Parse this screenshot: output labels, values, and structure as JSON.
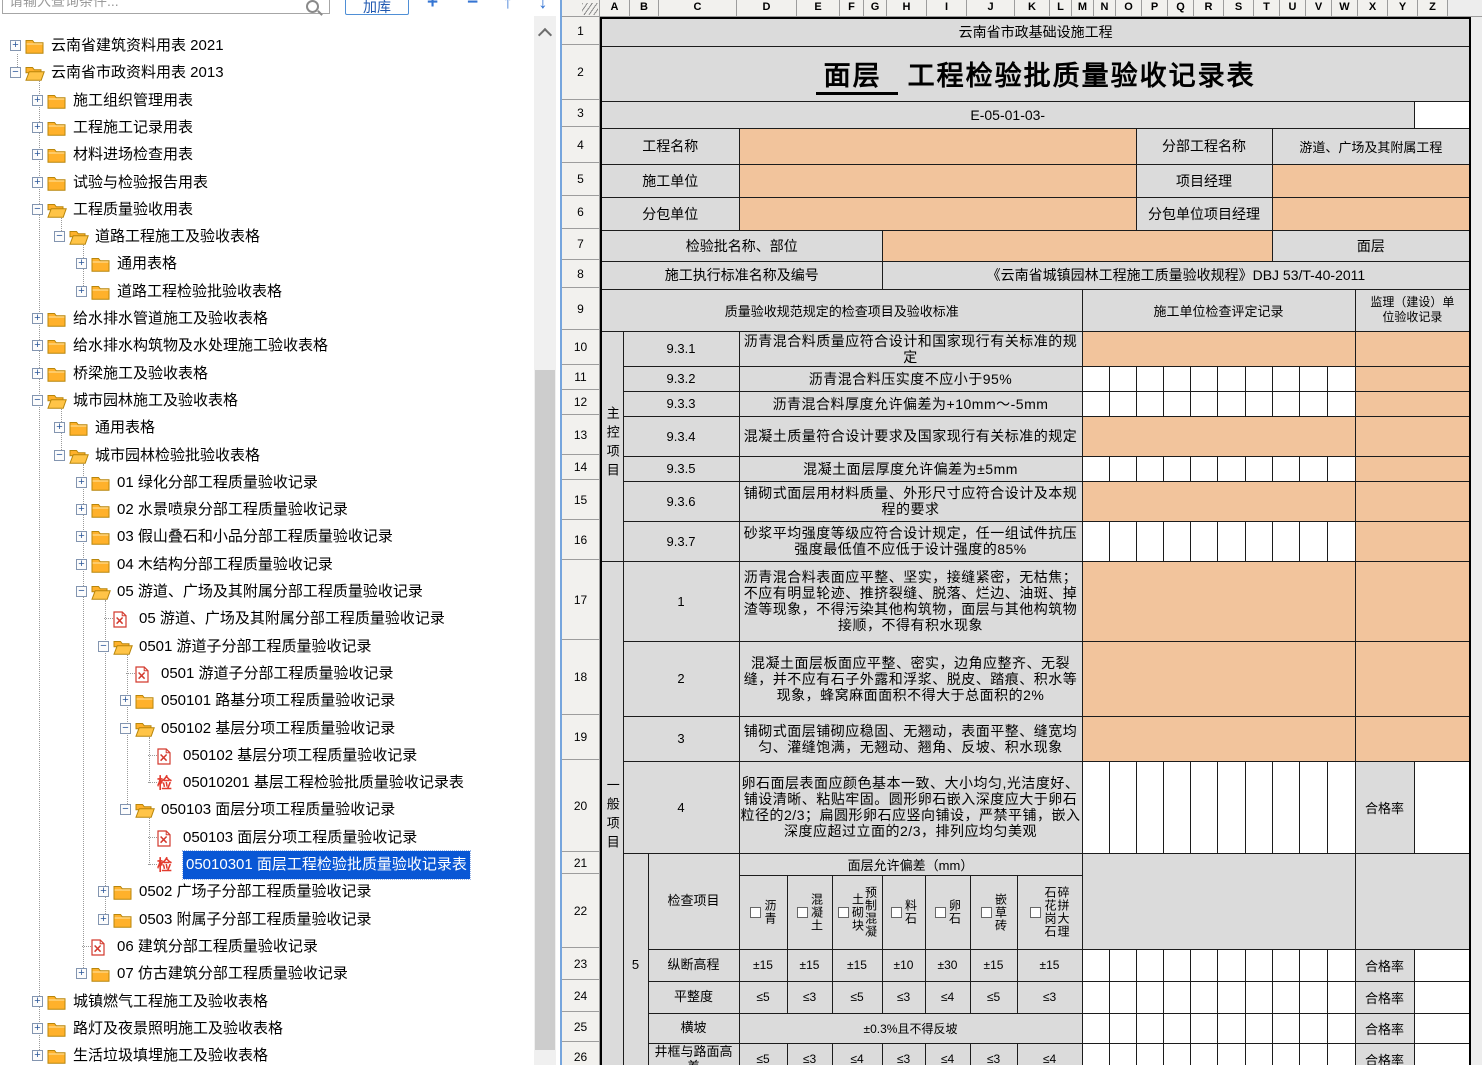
{
  "toolbar": {
    "search_placeholder": "请输入查询条件...",
    "add_button": "加库",
    "icons": {
      "plus": "+",
      "minus": "−",
      "up": "↑",
      "down": "↓"
    }
  },
  "icons": {
    "jian_char": "检"
  },
  "colors": {
    "accent_blue": "#3575d3",
    "selection_blue": "#0957d5",
    "input_orange": "#f2c49c",
    "cell_gray": "#dbdbdb",
    "folder_amber": "#ffb12b",
    "file_red": "#d33a2e"
  },
  "tree": {
    "items": [
      {
        "label": "云南省建筑资料用表 2021",
        "level": 0,
        "icon": "folder",
        "expand": "plus"
      },
      {
        "label": "云南省市政资料用表 2013",
        "level": 0,
        "icon": "folder-open",
        "expand": "minus"
      },
      {
        "label": "施工组织管理用表",
        "level": 1,
        "icon": "folder",
        "expand": "plus"
      },
      {
        "label": "工程施工记录用表",
        "level": 1,
        "icon": "folder",
        "expand": "plus"
      },
      {
        "label": "材料进场检查用表",
        "level": 1,
        "icon": "folder",
        "expand": "plus"
      },
      {
        "label": "试验与检验报告用表",
        "level": 1,
        "icon": "folder",
        "expand": "plus"
      },
      {
        "label": "工程质量验收用表",
        "level": 1,
        "icon": "folder-open",
        "expand": "minus"
      },
      {
        "label": "道路工程施工及验收表格",
        "level": 2,
        "icon": "folder-open",
        "expand": "minus"
      },
      {
        "label": "通用表格",
        "level": 3,
        "icon": "folder",
        "expand": "plus"
      },
      {
        "label": "道路工程检验批验收表格",
        "level": 3,
        "icon": "folder",
        "expand": "plus"
      },
      {
        "label": "给水排水管道施工及验收表格",
        "level": 1,
        "icon": "folder",
        "expand": "plus"
      },
      {
        "label": "给水排水构筑物及水处理施工验收表格",
        "level": 1,
        "icon": "folder",
        "expand": "plus"
      },
      {
        "label": "桥梁施工及验收表格",
        "level": 1,
        "icon": "folder",
        "expand": "plus"
      },
      {
        "label": "城市园林施工及验收表格",
        "level": 1,
        "icon": "folder-open",
        "expand": "minus"
      },
      {
        "label": "通用表格",
        "level": 2,
        "icon": "folder",
        "expand": "plus"
      },
      {
        "label": "城市园林检验批验收表格",
        "level": 2,
        "icon": "folder-open",
        "expand": "minus"
      },
      {
        "label": "01 绿化分部工程质量验收记录",
        "level": 3,
        "icon": "folder",
        "expand": "plus"
      },
      {
        "label": "02 水景喷泉分部工程质量验收记录",
        "level": 3,
        "icon": "folder",
        "expand": "plus"
      },
      {
        "label": "03 假山叠石和小品分部工程质量验收记录",
        "level": 3,
        "icon": "folder",
        "expand": "plus"
      },
      {
        "label": "04 木结构分部工程质量验收记录",
        "level": 3,
        "icon": "folder",
        "expand": "plus"
      },
      {
        "label": "05 游道、广场及其附属分部工程质量验收记录",
        "level": 3,
        "icon": "folder-open",
        "expand": "minus"
      },
      {
        "label": "05 游道、广场及其附属分部工程质量验收记录",
        "level": 4,
        "icon": "file-x"
      },
      {
        "label": "0501 游道子分部工程质量验收记录",
        "level": 4,
        "icon": "folder-open",
        "expand": "minus"
      },
      {
        "label": "0501 游道子分部工程质量验收记录",
        "level": 5,
        "icon": "file-x"
      },
      {
        "label": "050101 路基分项工程质量验收记录",
        "level": 5,
        "icon": "folder",
        "expand": "plus"
      },
      {
        "label": "050102 基层分项工程质量验收记录",
        "level": 5,
        "icon": "folder-open",
        "expand": "minus"
      },
      {
        "label": "050102 基层分项工程质量验收记录",
        "level": 6,
        "icon": "file-x"
      },
      {
        "label": "05010201 基层工程检验批质量验收记录表",
        "level": 6,
        "icon": "file-jian"
      },
      {
        "label": "050103 面层分项工程质量验收记录",
        "level": 5,
        "icon": "folder-open",
        "expand": "minus"
      },
      {
        "label": "050103 面层分项工程质量验收记录",
        "level": 6,
        "icon": "file-x"
      },
      {
        "label": "05010301 面层工程检验批质量验收记录表",
        "level": 6,
        "icon": "file-jian",
        "selected": true
      },
      {
        "label": "0502 广场子分部工程质量验收记录",
        "level": 4,
        "icon": "folder",
        "expand": "plus"
      },
      {
        "label": "0503 附属子分部工程质量验收记录",
        "level": 4,
        "icon": "folder",
        "expand": "plus"
      },
      {
        "label": "06 建筑分部工程质量验收记录",
        "level": 3,
        "icon": "file-x"
      },
      {
        "label": "07 仿古建筑分部工程质量验收记录",
        "level": 3,
        "icon": "folder",
        "expand": "plus"
      },
      {
        "label": "城镇燃气工程施工及验收表格",
        "level": 1,
        "icon": "folder",
        "expand": "plus"
      },
      {
        "label": "路灯及夜景照明施工及验收表格",
        "level": 1,
        "icon": "folder",
        "expand": "plus"
      },
      {
        "label": "生活垃圾填埋施工及验收表格",
        "level": 1,
        "icon": "folder",
        "expand": "plus"
      }
    ]
  },
  "sheet": {
    "columns": [
      "A",
      "B",
      "C",
      "D",
      "E",
      "F",
      "G",
      "H",
      "I",
      "J",
      "K",
      "L",
      "M",
      "N",
      "O",
      "P",
      "Q",
      "R",
      "S",
      "T",
      "U",
      "V",
      "W",
      "X",
      "Y",
      "Z"
    ],
    "rows": [
      "1",
      "2",
      "3",
      "4",
      "5",
      "6",
      "7",
      "8",
      "9",
      "10",
      "11",
      "12",
      "13",
      "14",
      "15",
      "16",
      "17",
      "18",
      "19",
      "20",
      "21",
      "22",
      "23",
      "24",
      "25",
      "26"
    ]
  },
  "form": {
    "top_header": "云南省市政基础设施工程",
    "title_blank": "面层",
    "title_rest": "工程检验批质量验收记录表",
    "code": "E-05-01-03-",
    "info": {
      "project_name_label": "工程名称",
      "division_label": "分部工程名称",
      "division_value": "游道、广场及其附属工程",
      "contractor_label": "施工单位",
      "pm_label": "项目经理",
      "subcontractor_label": "分包单位",
      "sub_pm_label": "分包单位项目经理",
      "batch_label": "检验批名称、部位",
      "batch_value": "面层",
      "standard_label": "施工执行标准名称及编号",
      "standard_value": "《云南省城镇园林工程施工质量验收规程》DBJ 53/T-40-2011"
    },
    "table_headers": {
      "spec": "质量验收规范规定的检查项目及验收标准",
      "contractor_record": "施工单位检查评定记录",
      "supervisor_record": "监理（建设）单位验收记录"
    },
    "main_control_label": "主控项目",
    "general_label": "一般项目",
    "pass_rate_label": "合格率",
    "main_items": [
      {
        "no": "9.3.1",
        "text": "沥青混合料质量应符合设计和国家现行有关标准的规定"
      },
      {
        "no": "9.3.2",
        "text": "沥青混合料压实度不应小于95%"
      },
      {
        "no": "9.3.3",
        "text": "沥青混合料厚度允许偏差为+10mm～-5mm"
      },
      {
        "no": "9.3.4",
        "text": "混凝土质量符合设计要求及国家现行有关标准的规定"
      },
      {
        "no": "9.3.5",
        "text": "混凝土面层厚度允许偏差为±5mm"
      },
      {
        "no": "9.3.6",
        "text": "铺砌式面层用材料质量、外形尺寸应符合设计及本规程的要求"
      },
      {
        "no": "9.3.7",
        "text": "砂浆平均强度等级应符合设计规定，任一组试件抗压强度最低值不应低于设计强度的85%"
      }
    ],
    "general_items": [
      {
        "no": "1",
        "text": "沥青混合料表面应平整、坚实，接缝紧密，无枯焦；不应有明显轮迹、推挤裂缝、脱落、烂边、油斑、掉渣等现象，不得污染其他构筑物，面层与其他构筑物接顺，不得有积水现象"
      },
      {
        "no": "2",
        "text": "混凝土面层板面应平整、密实，边角应整齐、无裂缝，并不应有石子外露和浮浆、脱皮、踏痕、积水等现象，蜂窝麻面面积不得大于总面积的2%"
      },
      {
        "no": "3",
        "text": "铺砌式面层铺砌应稳固、无翘动，表面平整、缝宽均匀、灌缝饱满，无翘动、翘角、反坡、积水现象"
      },
      {
        "no": "4",
        "text": "卵石面层表面应颜色基本一致、大小均匀,光洁度好、铺设清晰、粘贴牢固。圆形卵石嵌入深度应大于卵石粒径的2/3；扁圆形卵石应竖向铺设，严禁平铺，嵌入深度应超过立面的2/3，排列应均匀美观"
      }
    ],
    "deviation": {
      "item_no": "5",
      "check_label": "检查项目",
      "header": "面层允许偏差（mm）",
      "materials": [
        "沥青",
        "混凝土",
        "预制混凝土砌块",
        "料石",
        "卵石",
        "嵌草砖",
        "碎拼大理石花岗石"
      ],
      "rows": [
        {
          "label": "纵断高程",
          "values": [
            "±15",
            "±15",
            "±15",
            "±10",
            "±30",
            "±15",
            "±15"
          ]
        },
        {
          "label": "平整度",
          "values": [
            "≤5",
            "≤3",
            "≤5",
            "≤3",
            "≤4",
            "≤5",
            "≤3"
          ]
        },
        {
          "label": "横坡",
          "merged_value": "±0.3%且不得反坡"
        },
        {
          "label": "井框与路面高差",
          "values": [
            "≤5",
            "≤3",
            "≤4",
            "≤3",
            "≤4",
            "≤3",
            "≤4"
          ]
        }
      ]
    }
  }
}
